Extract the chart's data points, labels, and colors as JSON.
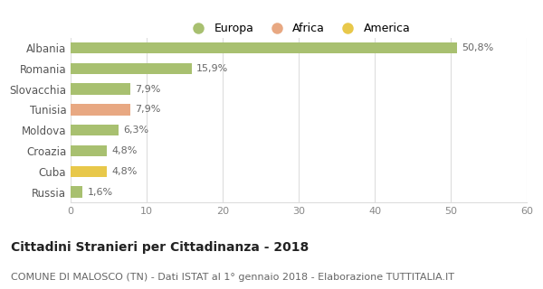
{
  "categories": [
    "Albania",
    "Romania",
    "Slovacchia",
    "Tunisia",
    "Moldova",
    "Croazia",
    "Cuba",
    "Russia"
  ],
  "values": [
    50.8,
    15.9,
    7.9,
    7.9,
    6.3,
    4.8,
    4.8,
    1.6
  ],
  "labels": [
    "50,8%",
    "15,9%",
    "7,9%",
    "7,9%",
    "6,3%",
    "4,8%",
    "4,8%",
    "1,6%"
  ],
  "colors": [
    "#a8c070",
    "#a8c070",
    "#a8c070",
    "#e8a882",
    "#a8c070",
    "#a8c070",
    "#e8c84a",
    "#a8c070"
  ],
  "legend_labels": [
    "Europa",
    "Africa",
    "America"
  ],
  "legend_colors": [
    "#a8c070",
    "#e8a882",
    "#e8c84a"
  ],
  "xlim": [
    0,
    60
  ],
  "xticks": [
    0,
    10,
    20,
    30,
    40,
    50,
    60
  ],
  "title": "Cittadini Stranieri per Cittadinanza - 2018",
  "subtitle": "COMUNE DI MALOSCO (TN) - Dati ISTAT al 1° gennaio 2018 - Elaborazione TUTTITALIA.IT",
  "title_fontsize": 10,
  "subtitle_fontsize": 8,
  "background_color": "#ffffff",
  "grid_color": "#dddddd",
  "bar_height": 0.55,
  "label_fontsize": 8,
  "ytick_fontsize": 8.5,
  "xtick_fontsize": 8
}
